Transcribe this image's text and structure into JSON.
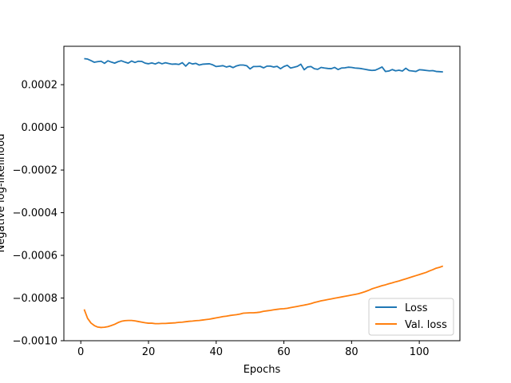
{
  "chart_data": {
    "type": "line",
    "title": "",
    "xlabel": "Epochs",
    "ylabel": "Negative log-likelihood",
    "xlim": [
      -5,
      112
    ],
    "ylim": [
      -0.001,
      0.00038
    ],
    "xticks": [
      0,
      20,
      40,
      60,
      80,
      100
    ],
    "xtick_labels": [
      "0",
      "20",
      "40",
      "60",
      "80",
      "100"
    ],
    "yticks": [
      -0.001,
      -0.0008,
      -0.0006,
      -0.0004,
      -0.0002,
      0.0,
      0.0002
    ],
    "ytick_labels": [
      "−0.0010",
      "−0.0008",
      "−0.0006",
      "−0.0004",
      "−0.0002",
      "0.0000",
      "0.0002"
    ],
    "grid": false,
    "legend_position": "lower right",
    "series": [
      {
        "name": "Loss",
        "color": "#1f77b4",
        "x": [
          1,
          2,
          3,
          4,
          5,
          6,
          7,
          8,
          9,
          10,
          11,
          12,
          13,
          14,
          15,
          16,
          17,
          18,
          19,
          20,
          21,
          22,
          23,
          24,
          25,
          26,
          27,
          28,
          29,
          30,
          31,
          32,
          33,
          34,
          35,
          36,
          37,
          38,
          39,
          40,
          41,
          42,
          43,
          44,
          45,
          46,
          47,
          48,
          49,
          50,
          51,
          52,
          53,
          54,
          55,
          56,
          57,
          58,
          59,
          60,
          61,
          62,
          63,
          64,
          65,
          66,
          67,
          68,
          69,
          70,
          71,
          72,
          73,
          74,
          75,
          76,
          77,
          78,
          79,
          80,
          81,
          82,
          83,
          84,
          85,
          86,
          87,
          88,
          89,
          90,
          91,
          92,
          93,
          94,
          95,
          96,
          97,
          98,
          99,
          100,
          101,
          102,
          103,
          104,
          105,
          106,
          107
        ],
        "values": [
          0.000322,
          0.00032,
          0.000313,
          0.000305,
          0.000308,
          0.00031,
          0.0003,
          0.000312,
          0.000306,
          0.000301,
          0.000308,
          0.000312,
          0.000306,
          0.000301,
          0.000311,
          0.000304,
          0.00031,
          0.000309,
          0.000301,
          0.000298,
          0.000302,
          0.000297,
          0.000304,
          0.000298,
          0.000303,
          0.000299,
          0.000296,
          0.000297,
          0.000295,
          0.000303,
          0.000287,
          0.000303,
          0.000297,
          0.0003,
          0.000292,
          0.000296,
          0.000297,
          0.000298,
          0.000293,
          0.000285,
          0.000287,
          0.000289,
          0.000283,
          0.000287,
          0.00028,
          0.000288,
          0.000292,
          0.000292,
          0.000289,
          0.000274,
          0.000285,
          0.000285,
          0.000286,
          0.000279,
          0.000287,
          0.000287,
          0.000283,
          0.000286,
          0.000275,
          0.000285,
          0.000291,
          0.000278,
          0.000282,
          0.000286,
          0.000296,
          0.00027,
          0.000283,
          0.000285,
          0.000275,
          0.000272,
          0.000281,
          0.000278,
          0.000276,
          0.000275,
          0.000281,
          0.000271,
          0.000278,
          0.000279,
          0.000282,
          0.000281,
          0.000278,
          0.000277,
          0.000275,
          0.000272,
          0.000269,
          0.000267,
          0.000268,
          0.000275,
          0.000283,
          0.000262,
          0.000264,
          0.000271,
          0.000265,
          0.000268,
          0.000264,
          0.000277,
          0.000266,
          0.000264,
          0.000262,
          0.00027,
          0.000269,
          0.000267,
          0.000265,
          0.000266,
          0.000262,
          0.000261,
          0.00026
        ]
      },
      {
        "name": "Val. loss",
        "color": "#ff7f0e",
        "x": [
          1,
          2,
          3,
          4,
          5,
          6,
          7,
          8,
          9,
          10,
          11,
          12,
          13,
          14,
          15,
          16,
          17,
          18,
          19,
          20,
          21,
          22,
          23,
          24,
          25,
          26,
          27,
          28,
          29,
          30,
          31,
          32,
          33,
          34,
          35,
          36,
          37,
          38,
          39,
          40,
          41,
          42,
          43,
          44,
          45,
          46,
          47,
          48,
          49,
          50,
          51,
          52,
          53,
          54,
          55,
          56,
          57,
          58,
          59,
          60,
          61,
          62,
          63,
          64,
          65,
          66,
          67,
          68,
          69,
          70,
          71,
          72,
          73,
          74,
          75,
          76,
          77,
          78,
          79,
          80,
          81,
          82,
          83,
          84,
          85,
          86,
          87,
          88,
          89,
          90,
          91,
          92,
          93,
          94,
          95,
          96,
          97,
          98,
          99,
          100,
          101,
          102,
          103,
          104,
          105,
          106,
          107
        ],
        "values": [
          -0.000853,
          -0.000895,
          -0.000917,
          -0.000929,
          -0.000936,
          -0.000938,
          -0.000937,
          -0.000934,
          -0.000929,
          -0.000923,
          -0.000915,
          -0.000909,
          -0.000906,
          -0.000905,
          -0.000905,
          -0.000907,
          -0.00091,
          -0.000913,
          -0.000916,
          -0.000918,
          -0.000918,
          -0.00092,
          -0.00092,
          -0.000919,
          -0.000919,
          -0.000918,
          -0.000917,
          -0.000916,
          -0.000914,
          -0.000913,
          -0.000911,
          -0.000909,
          -0.000908,
          -0.000906,
          -0.000905,
          -0.000903,
          -0.000901,
          -0.000899,
          -0.000896,
          -0.000893,
          -0.00089,
          -0.000887,
          -0.000885,
          -0.000882,
          -0.00088,
          -0.000878,
          -0.000875,
          -0.000871,
          -0.00087,
          -0.000869,
          -0.000869,
          -0.000868,
          -0.000866,
          -0.000862,
          -0.00086,
          -0.000858,
          -0.000855,
          -0.000853,
          -0.000851,
          -0.00085,
          -0.000848,
          -0.000845,
          -0.000842,
          -0.000839,
          -0.000836,
          -0.000833,
          -0.00083,
          -0.000826,
          -0.000821,
          -0.000817,
          -0.000813,
          -0.00081,
          -0.000807,
          -0.000804,
          -0.000801,
          -0.000798,
          -0.000795,
          -0.000792,
          -0.000789,
          -0.000786,
          -0.000783,
          -0.00078,
          -0.000775,
          -0.00077,
          -0.000764,
          -0.000757,
          -0.000752,
          -0.000747,
          -0.000742,
          -0.000738,
          -0.000733,
          -0.000729,
          -0.000724,
          -0.00072,
          -0.000715,
          -0.00071,
          -0.000705,
          -0.0007,
          -0.000695,
          -0.00069,
          -0.000685,
          -0.00068,
          -0.000673,
          -0.000667,
          -0.00066,
          -0.000656,
          -0.00065
        ]
      }
    ]
  }
}
